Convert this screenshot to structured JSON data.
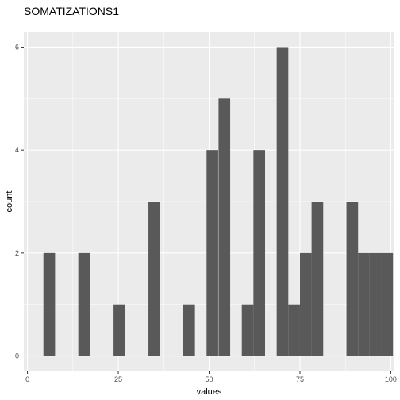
{
  "chart_data": {
    "type": "bar",
    "title": "SOMATIZATIONS1",
    "xlabel": "values",
    "ylabel": "count",
    "xlim": [
      -1,
      101
    ],
    "ylim": [
      -0.3,
      6.3
    ],
    "x_ticks": [
      0,
      25,
      50,
      75,
      100
    ],
    "y_ticks": [
      0,
      2,
      4,
      6
    ],
    "grid": true,
    "bin_width": 3.2,
    "bins": [
      {
        "x": 6.0,
        "count": 2
      },
      {
        "x": 15.6,
        "count": 2
      },
      {
        "x": 25.3,
        "count": 1
      },
      {
        "x": 34.9,
        "count": 3
      },
      {
        "x": 44.5,
        "count": 1
      },
      {
        "x": 50.9,
        "count": 4
      },
      {
        "x": 54.2,
        "count": 5
      },
      {
        "x": 60.6,
        "count": 1
      },
      {
        "x": 63.8,
        "count": 4
      },
      {
        "x": 70.2,
        "count": 6
      },
      {
        "x": 73.4,
        "count": 1
      },
      {
        "x": 76.6,
        "count": 2
      },
      {
        "x": 79.8,
        "count": 3
      },
      {
        "x": 89.4,
        "count": 3
      },
      {
        "x": 92.6,
        "count": 2
      },
      {
        "x": 95.8,
        "count": 2
      },
      {
        "x": 99.0,
        "count": 2
      }
    ],
    "colors": {
      "panel": "#ebebeb",
      "grid_major": "#ffffff",
      "bar": "#595959",
      "tick": "#333333"
    }
  }
}
